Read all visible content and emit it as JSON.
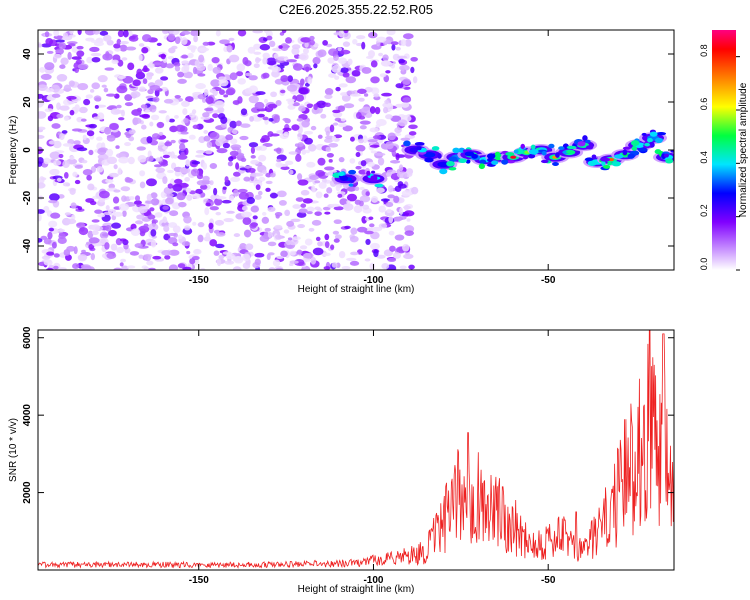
{
  "title": "C2E6.2025.355.22.52.R05",
  "chart_data": [
    {
      "type": "heatmap",
      "xlabel": "Height of straight line (km)",
      "ylabel": "Frequency (Hz)",
      "xlim": [
        -196,
        -14
      ],
      "ylim": [
        -50,
        50
      ],
      "xticks": [
        -150,
        -100,
        -50
      ],
      "xtick_labels": [
        "-150",
        "-100",
        "-50"
      ],
      "yticks": [
        -40,
        -20,
        0,
        20,
        40
      ],
      "ytick_labels": [
        "-40",
        "-20",
        "0",
        "20",
        "40"
      ],
      "colorbar": {
        "label": "Normalized spectral amplitude",
        "range": [
          0,
          0.9
        ],
        "ticks": [
          0,
          0.2,
          0.4,
          0.6,
          0.8
        ],
        "tick_labels": [
          "0.0",
          "0.2",
          "0.4",
          "0.6",
          "0.8"
        ],
        "colors": [
          "#ffffff",
          "#cc99ff",
          "#8000ff",
          "#0000ff",
          "#00e5ff",
          "#00ff40",
          "#ffff00",
          "#ff8000",
          "#ff0000",
          "#ff0080"
        ]
      },
      "noise_region_x": [
        -196,
        -88
      ],
      "band": [
        {
          "x": -108,
          "y": -12,
          "amp": 0.22
        },
        {
          "x": -100,
          "y": -12,
          "amp": 0.2
        },
        {
          "x": -88,
          "y": 0,
          "amp": 0.25
        },
        {
          "x": -84,
          "y": -2,
          "amp": 0.3
        },
        {
          "x": -80,
          "y": -6,
          "amp": 0.28
        },
        {
          "x": -76,
          "y": -3,
          "amp": 0.35
        },
        {
          "x": -72,
          "y": -2,
          "amp": 0.45
        },
        {
          "x": -68,
          "y": -4,
          "amp": 0.4
        },
        {
          "x": -64,
          "y": -3,
          "amp": 0.5
        },
        {
          "x": -60,
          "y": -3,
          "amp": 0.85
        },
        {
          "x": -56,
          "y": -1,
          "amp": 0.55
        },
        {
          "x": -52,
          "y": 0,
          "amp": 0.45
        },
        {
          "x": -48,
          "y": -3,
          "amp": 0.7
        },
        {
          "x": -44,
          "y": -1,
          "amp": 0.5
        },
        {
          "x": -40,
          "y": 2,
          "amp": 0.45
        },
        {
          "x": -36,
          "y": -5,
          "amp": 0.4
        },
        {
          "x": -32,
          "y": -4,
          "amp": 0.75
        },
        {
          "x": -28,
          "y": -2,
          "amp": 0.5
        },
        {
          "x": -24,
          "y": 2,
          "amp": 0.4
        },
        {
          "x": -20,
          "y": 5,
          "amp": 0.35
        },
        {
          "x": -16,
          "y": -3,
          "amp": 0.4
        }
      ]
    },
    {
      "type": "line",
      "xlabel": "Height of straight line (km)",
      "ylabel": "SNR (10 * v/v)",
      "xlim": [
        -196,
        -14
      ],
      "ylim": [
        0,
        6200
      ],
      "xticks": [
        -150,
        -100,
        -50
      ],
      "xtick_labels": [
        "-150",
        "-100",
        "-50"
      ],
      "yticks": [
        2000,
        4000,
        6000
      ],
      "ytick_labels": [
        "2000",
        "4000",
        "6000"
      ],
      "series_color": "#ee2020",
      "envelope": {
        "x": [
          -196,
          -130,
          -105,
          -92,
          -85,
          -80,
          -76,
          -73,
          -70,
          -66,
          -62,
          -58,
          -55,
          -52,
          -48,
          -45,
          -42,
          -38,
          -34,
          -30,
          -26,
          -23,
          -20,
          -18,
          -16,
          -14
        ],
        "y": [
          150,
          150,
          200,
          400,
          600,
          1500,
          2300,
          2700,
          2400,
          1900,
          1700,
          1200,
          900,
          900,
          1000,
          1100,
          600,
          900,
          1500,
          2400,
          3500,
          4300,
          4600,
          4200,
          4200,
          3800
        ]
      },
      "spikes": [
        {
          "x": -73,
          "y": 3550
        },
        {
          "x": -63,
          "y": 2150
        },
        {
          "x": -42,
          "y": 1500
        },
        {
          "x": -21,
          "y": 6200
        },
        {
          "x": -17,
          "y": 6100
        }
      ]
    }
  ]
}
